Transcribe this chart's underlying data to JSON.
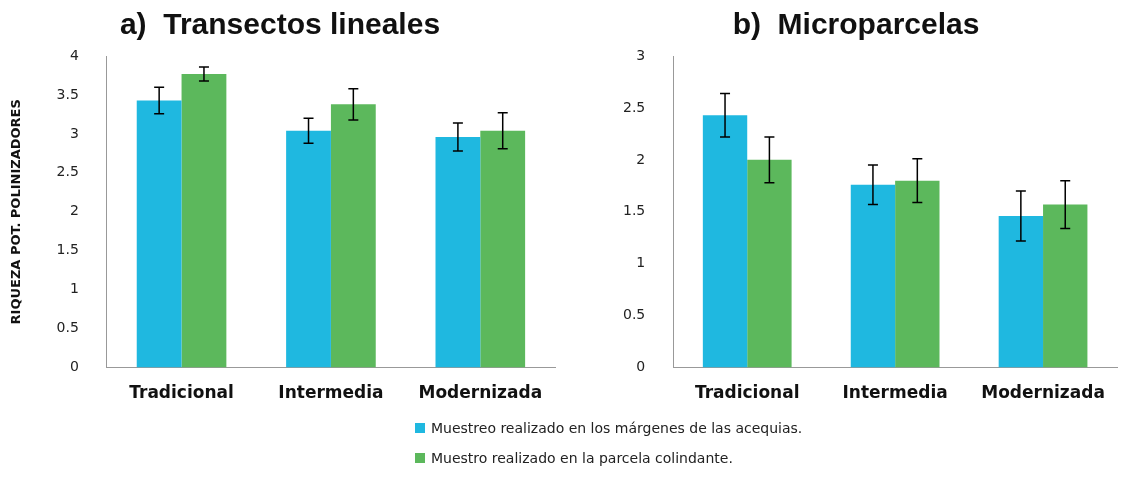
{
  "chart_data": [
    {
      "type": "bar",
      "title": "a)  Transectos lineales",
      "ylabel": "RIQUEZA POT. POLINIZADORES",
      "categories": [
        "Tradicional",
        "Intermedia",
        "Modernizada"
      ],
      "ylim": [
        0,
        4
      ],
      "yticks": [
        0,
        0.5,
        1,
        1.5,
        2,
        2.5,
        3,
        3.5,
        4
      ],
      "grid": false,
      "legend": false,
      "series": [
        {
          "color": "#1fb8e0",
          "values": [
            3.43,
            3.04,
            2.96
          ],
          "errors": [
            0.17,
            0.16,
            0.18
          ]
        },
        {
          "color": "#5cb85c",
          "values": [
            3.77,
            3.38,
            3.04
          ],
          "errors": [
            0.09,
            0.2,
            0.23
          ]
        }
      ]
    },
    {
      "type": "bar",
      "title": "b)  Microparcelas",
      "categories": [
        "Tradicional",
        "Intermedia",
        "Modernizada"
      ],
      "ylim": [
        0,
        3
      ],
      "yticks": [
        0,
        0.5,
        1,
        1.5,
        2,
        2.5,
        3
      ],
      "grid": false,
      "legend": "bottom",
      "series": [
        {
          "name": "Muestreo realizado  en los márgenes de las acequias.",
          "color": "#1fb8e0",
          "values": [
            2.43,
            1.76,
            1.46
          ],
          "errors": [
            0.21,
            0.19,
            0.24
          ]
        },
        {
          "name": "Muestro realizado  en la parcela colindante.",
          "color": "#5cb85c",
          "values": [
            2.0,
            1.8,
            1.57
          ],
          "errors": [
            0.22,
            0.21,
            0.23
          ]
        }
      ]
    }
  ]
}
